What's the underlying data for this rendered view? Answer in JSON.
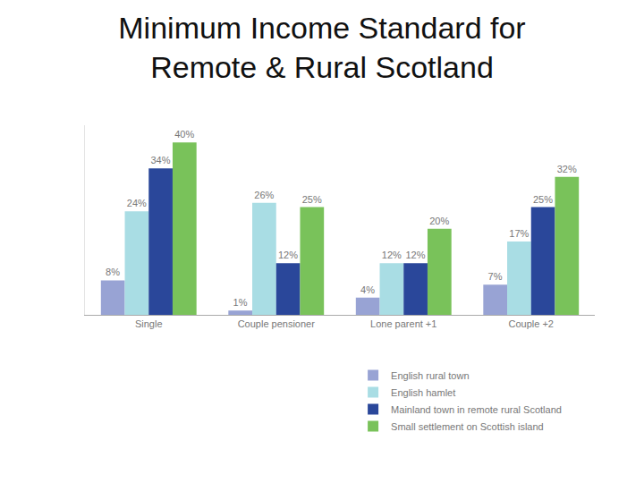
{
  "chart_data": {
    "type": "bar",
    "title": "Minimum Income Standard for\nRemote & Rural Scotland",
    "categories": [
      "Single",
      "Couple pensioner",
      "Lone parent +1",
      "Couple +2"
    ],
    "series": [
      {
        "name": "English rural town",
        "color": "#98a3d4",
        "values": [
          8,
          1,
          4,
          7
        ],
        "value_labels": [
          "8%",
          "1%",
          "4%",
          "7%"
        ]
      },
      {
        "name": "English hamlet",
        "color": "#a9dde4",
        "values": [
          24,
          26,
          12,
          17
        ],
        "value_labels": [
          "24%",
          "26%",
          "12%",
          "17%"
        ]
      },
      {
        "name": "Mainland town in remote rural Scotland",
        "color": "#2a479a",
        "values": [
          34,
          12,
          12,
          25
        ],
        "value_labels": [
          "34%",
          "12%",
          "12%",
          "25%"
        ]
      },
      {
        "name": "Small settlement on Scottish island",
        "color": "#79c25a",
        "values": [
          40,
          25,
          20,
          32
        ],
        "value_labels": [
          "40%",
          "25%",
          "20%",
          "32%"
        ]
      }
    ],
    "ylim": [
      0,
      44
    ],
    "yticks": [],
    "grid": false,
    "data_labels": true,
    "tick_labels": "x",
    "legend": "bottom right"
  }
}
